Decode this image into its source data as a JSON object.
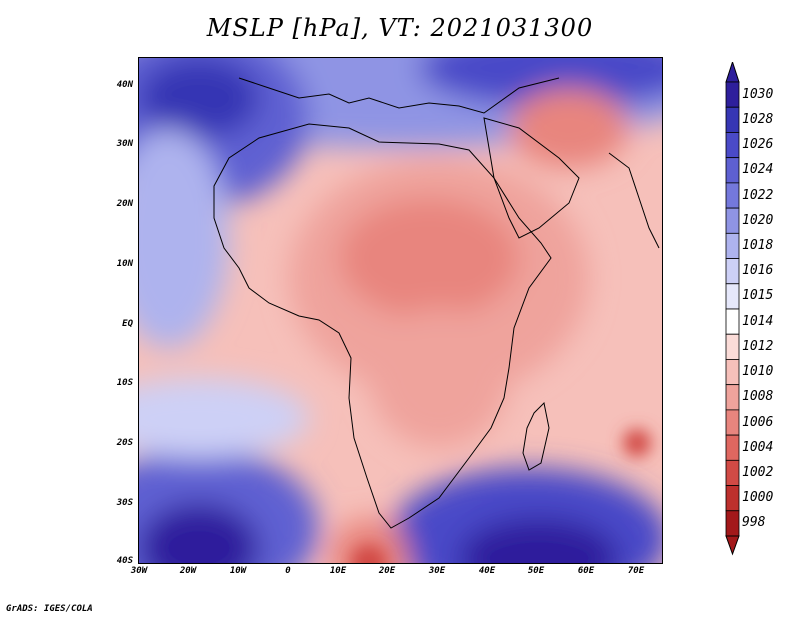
{
  "title": "MSLP [hPa], VT: 2021031300",
  "footer": "GrADS: IGES/COLA",
  "y_axis_labels": [
    "40N",
    "30N",
    "20N",
    "10N",
    "EQ",
    "10S",
    "20S",
    "30S",
    "40S"
  ],
  "x_axis_labels": [
    "30W",
    "20W",
    "10W",
    "0",
    "10E",
    "20E",
    "30E",
    "40E",
    "50E",
    "60E",
    "70E"
  ],
  "colorbar": {
    "levels": [
      "1030",
      "1028",
      "1026",
      "1024",
      "1022",
      "1020",
      "1018",
      "1016",
      "1015",
      "1014",
      "1012",
      "1010",
      "1008",
      "1006",
      "1004",
      "1002",
      "1000",
      "998"
    ],
    "colors": [
      "#2e1f9c",
      "#3636b4",
      "#4a4ac8",
      "#5e60d2",
      "#7478dc",
      "#8f94e4",
      "#aeb3ee",
      "#cdd0f6",
      "#e6e8fb",
      "#ffffff",
      "#fbdcd8",
      "#f6c0ba",
      "#efa39c",
      "#e8857e",
      "#df6760",
      "#d14a45",
      "#bd302d",
      "#a3181a"
    ]
  },
  "colors": {
    "high_center": "#2e1f9c",
    "low_center": "#a3181a",
    "coast": "#000000"
  }
}
